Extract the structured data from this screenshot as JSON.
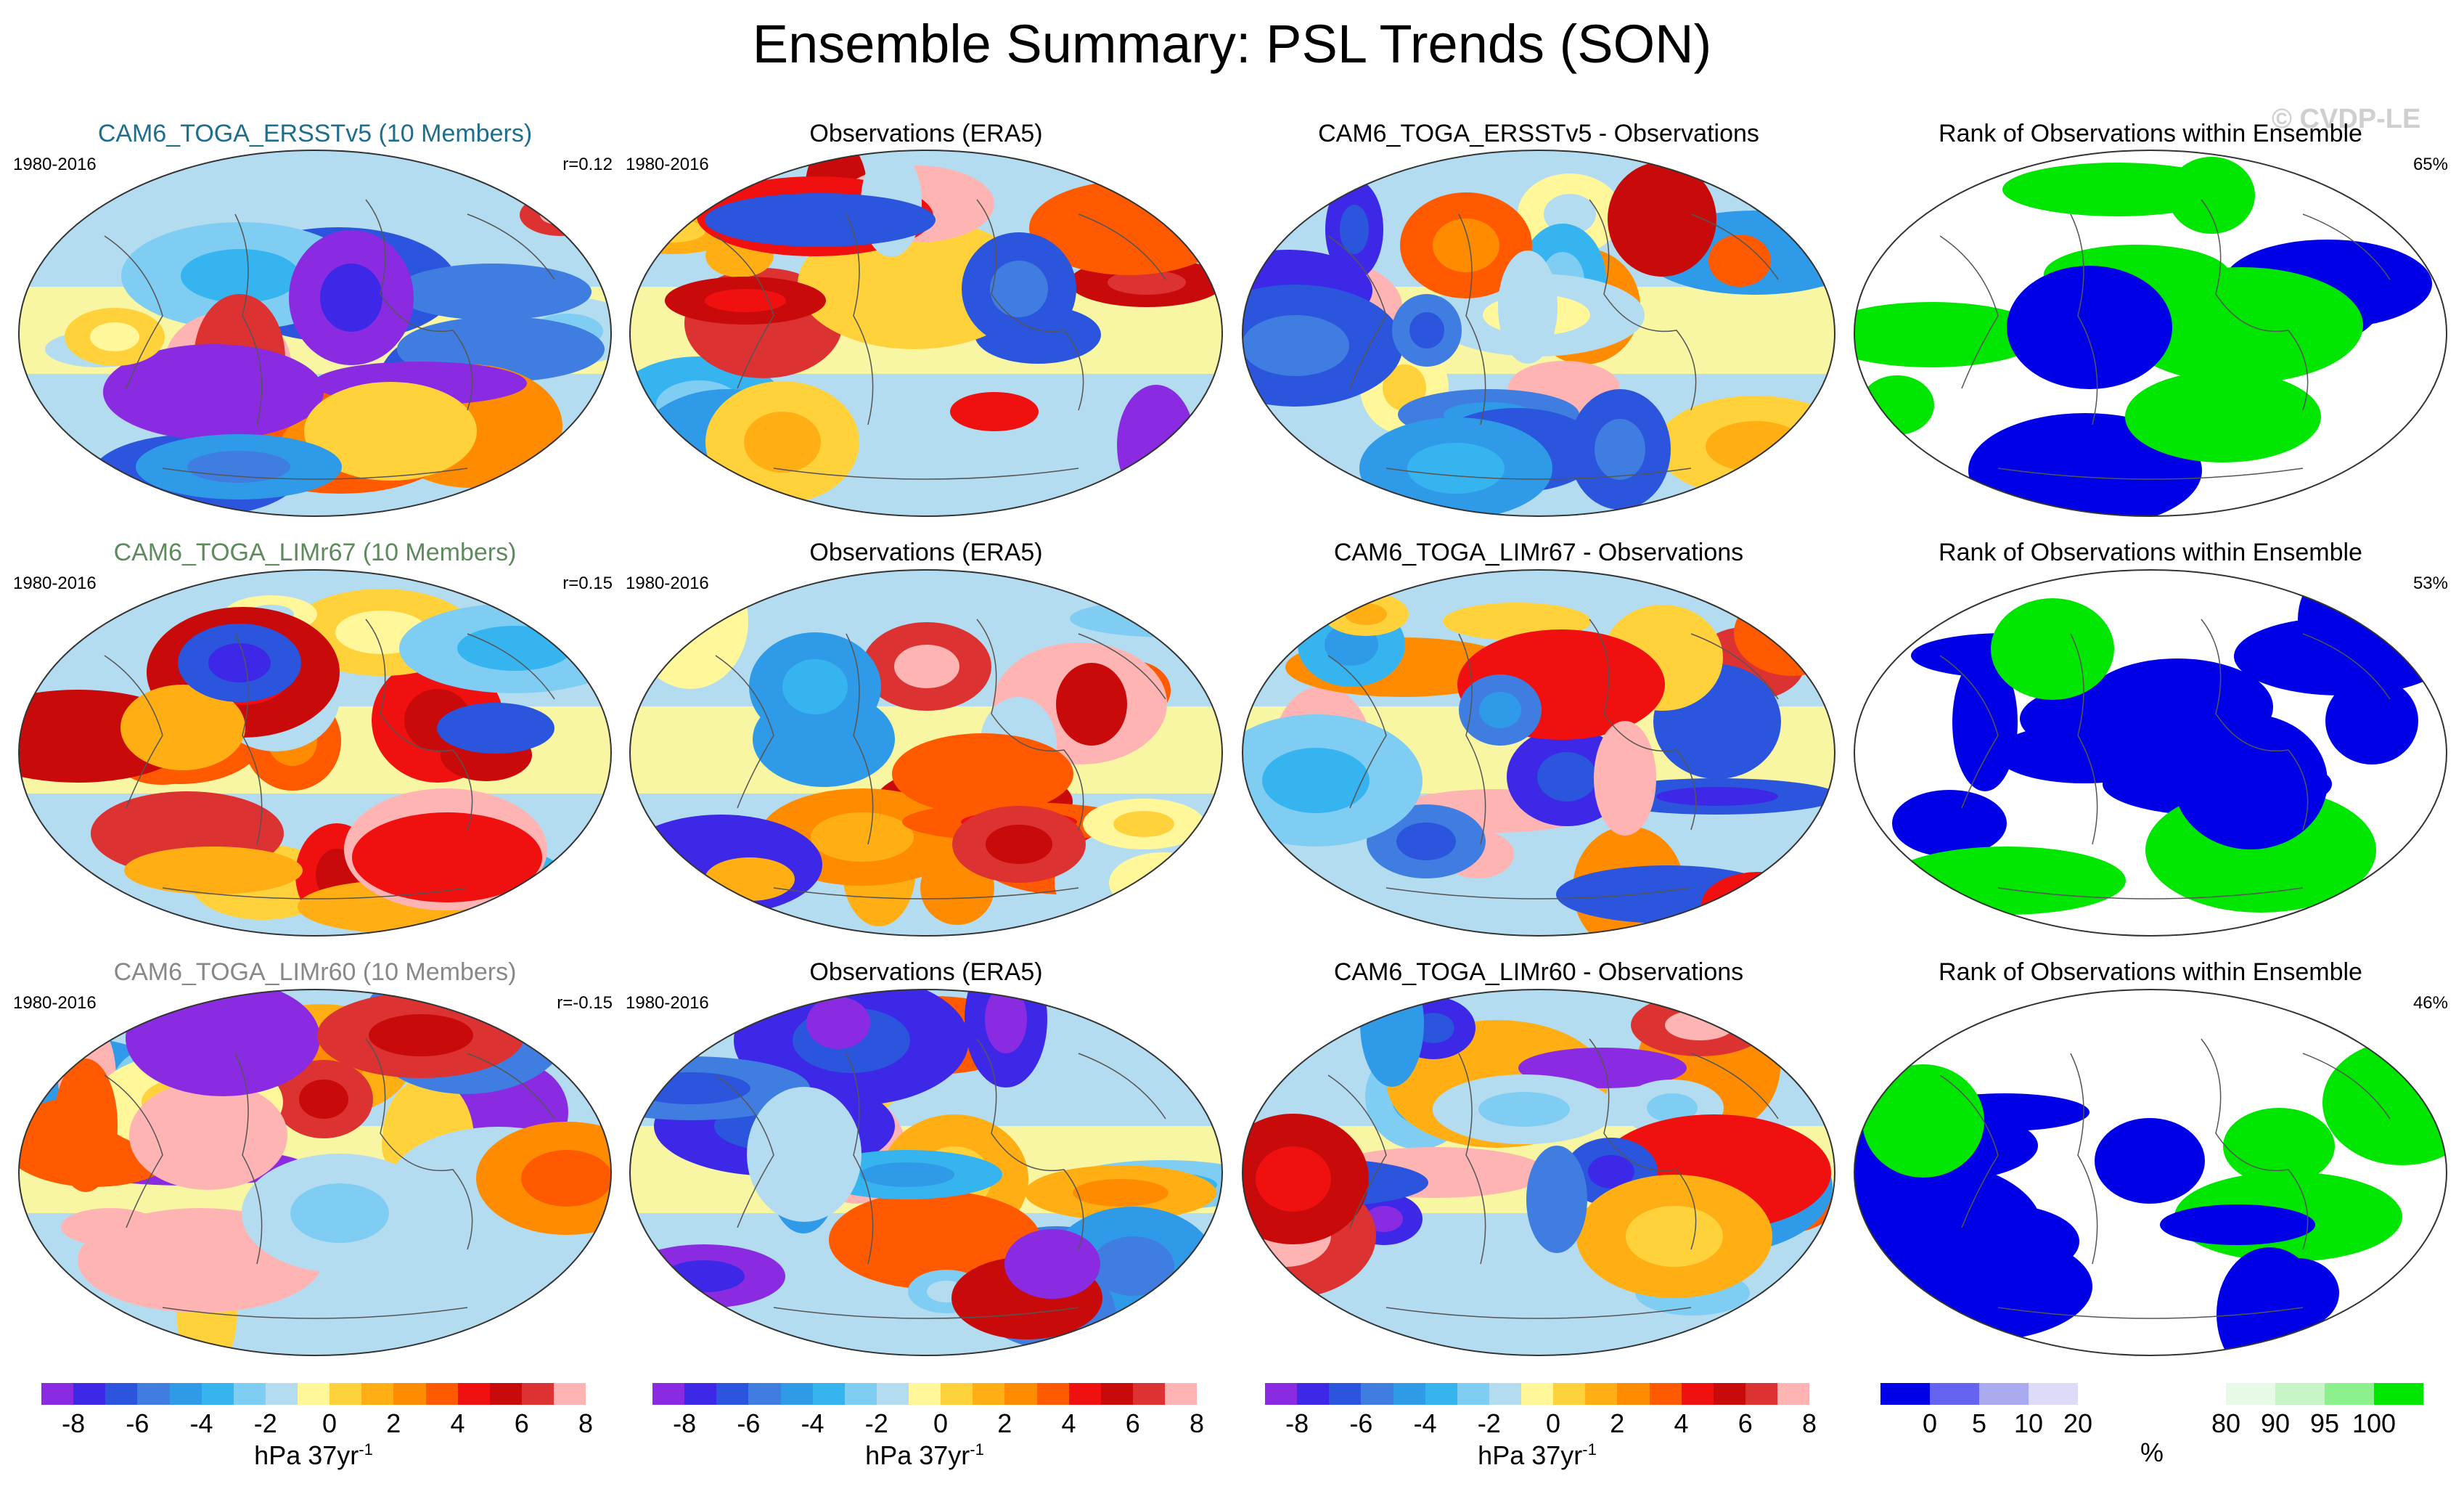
{
  "title": "Ensemble Summary: PSL Trends (SON)",
  "watermark": "© CVDP-LE",
  "rows": [
    {
      "model_title": "CAM6_TOGA_ERSSTv5 (10 Members)",
      "model_color": "#1e6e8c",
      "years": "1980-2016",
      "corr": "r=0.12",
      "obs_title": "Observations (ERA5)",
      "obs_years": "1980-2016",
      "diff_title": "CAM6_TOGA_ERSSTv5 - Observations",
      "rank_title": "Rank of Observations within Ensemble",
      "rank_pct": "65%"
    },
    {
      "model_title": "CAM6_TOGA_LIMr67 (10 Members)",
      "model_color": "#5e8a5e",
      "years": "1980-2016",
      "corr": "r=0.15",
      "obs_title": "Observations (ERA5)",
      "obs_years": "1980-2016",
      "diff_title": "CAM6_TOGA_LIMr67 - Observations",
      "rank_title": "Rank of Observations within Ensemble",
      "rank_pct": "53%"
    },
    {
      "model_title": "CAM6_TOGA_LIMr60 (10 Members)",
      "model_color": "#888888",
      "years": "1980-2016",
      "corr": "r=-0.15",
      "obs_title": "Observations (ERA5)",
      "obs_years": "1980-2016",
      "diff_title": "CAM6_TOGA_LIMr60 - Observations",
      "rank_title": "Rank of Observations within Ensemble",
      "rank_pct": "46%"
    }
  ],
  "colorbar": {
    "colors": [
      "#8a2be2",
      "#3c28e6",
      "#2a55dc",
      "#3f7ee0",
      "#2f9be8",
      "#36b4f0",
      "#7fcdf2",
      "#b4dcf0",
      "#fff79a",
      "#ffd23c",
      "#ffaf14",
      "#ff8c00",
      "#ff5a00",
      "#f01010",
      "#c80a0a",
      "#dc3232",
      "#ffb4b4"
    ],
    "ticks": [
      "-8",
      "-6",
      "-4",
      "-2",
      "0",
      "2",
      "4",
      "6",
      "8"
    ],
    "unit": "hPa 37yr",
    "unit_sup": "-1"
  },
  "rank_colorbar": {
    "colors": [
      "#0000e6",
      "#6464f0",
      "#aaaaf0",
      "#dcdcf8",
      "#ffffff",
      "#ffffff",
      "#ffffff",
      "#e6fae6",
      "#c8f5c8",
      "#8cf08c",
      "#00e600"
    ],
    "ticks": [
      "0",
      "5",
      "10",
      "20",
      "80",
      "90",
      "95",
      "100"
    ],
    "unit": "%"
  }
}
